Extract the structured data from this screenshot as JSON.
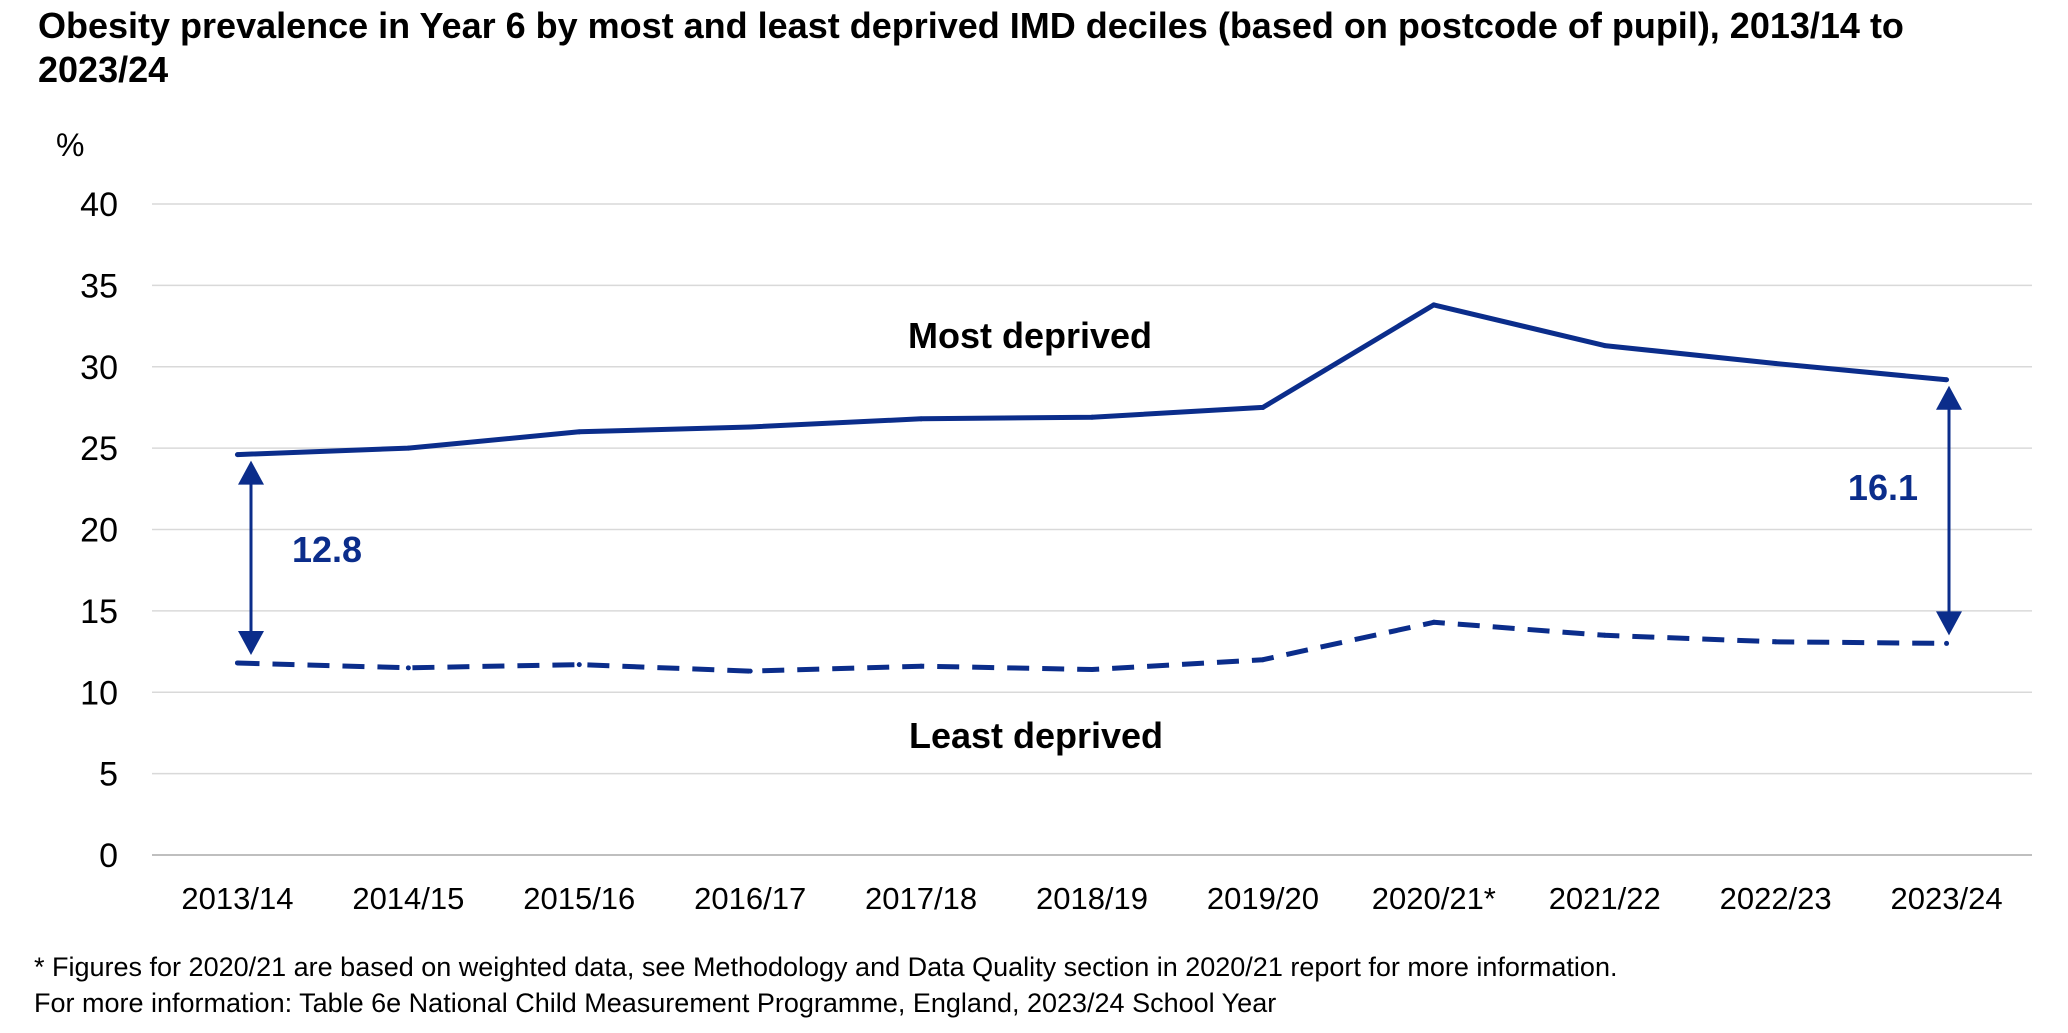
{
  "chart_data": {
    "type": "line",
    "title": "Obesity prevalence in Year 6 by most and least deprived IMD deciles (based on postcode of pupil), 2013/14 to 2023/24",
    "xlabel": "",
    "ylabel": "%",
    "ylim": [
      0,
      40
    ],
    "yticks": [
      "0",
      "5",
      "10",
      "15",
      "20",
      "25",
      "30",
      "35",
      "40"
    ],
    "categories": [
      "2013/14",
      "2014/15",
      "2015/16",
      "2016/17",
      "2017/18",
      "2018/19",
      "2019/20",
      "2020/21*",
      "2021/22",
      "2022/23",
      "2023/24"
    ],
    "grid": true,
    "legend": "none",
    "series": [
      {
        "name": "Most deprived",
        "values": [
          24.6,
          25.0,
          26.0,
          26.3,
          26.8,
          26.9,
          27.5,
          33.8,
          31.3,
          30.2,
          29.2
        ],
        "line_style": "solid",
        "color": "#0B2D8B"
      },
      {
        "name": "Least deprived",
        "values": [
          11.8,
          11.5,
          11.7,
          11.3,
          11.6,
          11.4,
          12.0,
          14.3,
          13.5,
          13.1,
          13.0
        ],
        "line_style": "dashed",
        "color": "#0B2D8B"
      }
    ],
    "annotations": [
      {
        "text": "12.8",
        "category": "2013/14",
        "from": 11.8,
        "to": 24.6
      },
      {
        "text": "16.1",
        "category": "2023/24",
        "from": 13.0,
        "to": 29.2
      }
    ]
  },
  "footnotes": [
    "* Figures for 2020/21 are based on weighted data, see Methodology and Data Quality section in 2020/21 report for more information.",
    "For more information: Table 6e National Child Measurement Programme, England, 2023/24 School Year"
  ],
  "colors": {
    "series": "#0B2D8B",
    "grid": "#D9D9D9",
    "axis": "#BFBFBF"
  }
}
